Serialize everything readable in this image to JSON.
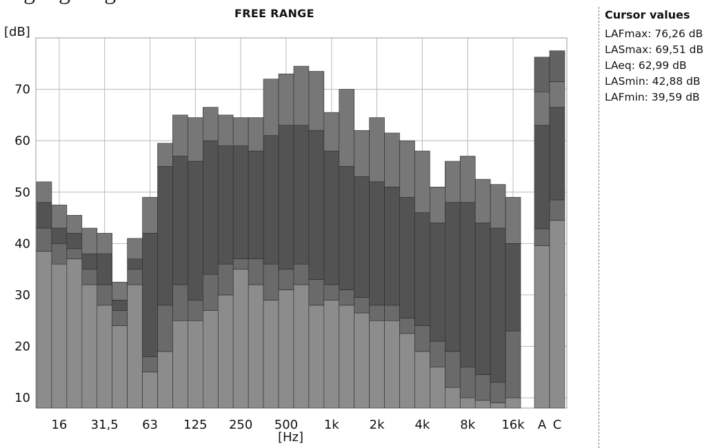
{
  "top_text": "…g…ge…g…",
  "chart_data": {
    "type": "bar",
    "title": "FREE RANGE",
    "ylabel": "[dB]",
    "xlabel": "[Hz]",
    "ylim": [
      8,
      80
    ],
    "yticks": [
      10,
      20,
      30,
      40,
      50,
      60,
      70
    ],
    "grid": true,
    "bands": [
      {
        "label": "",
        "values": [
          38.5,
          43,
          48,
          52
        ]
      },
      {
        "label": "16",
        "values": [
          36,
          40,
          43,
          47.5
        ]
      },
      {
        "label": "",
        "values": [
          37,
          39,
          42,
          45.5
        ]
      },
      {
        "label": "",
        "values": [
          32,
          35,
          38,
          43
        ]
      },
      {
        "label": "31,5",
        "values": [
          28,
          32,
          38,
          42
        ]
      },
      {
        "label": "",
        "values": [
          24,
          27,
          29,
          32.5
        ]
      },
      {
        "label": "",
        "values": [
          32,
          35,
          37,
          41
        ]
      },
      {
        "label": "63",
        "values": [
          15,
          18,
          42,
          49
        ]
      },
      {
        "label": "",
        "values": [
          19,
          28,
          55,
          59.5
        ]
      },
      {
        "label": "",
        "values": [
          25,
          32,
          57,
          65
        ]
      },
      {
        "label": "125",
        "values": [
          25,
          29,
          56,
          64.5
        ]
      },
      {
        "label": "",
        "values": [
          27,
          34,
          60,
          66.5
        ]
      },
      {
        "label": "",
        "values": [
          30,
          36,
          59,
          65
        ]
      },
      {
        "label": "250",
        "values": [
          35,
          37,
          59,
          64.5
        ]
      },
      {
        "label": "",
        "values": [
          32,
          37,
          58,
          64.5
        ]
      },
      {
        "label": "",
        "values": [
          29,
          36,
          61,
          72
        ]
      },
      {
        "label": "500",
        "values": [
          31,
          35,
          63,
          73
        ]
      },
      {
        "label": "",
        "values": [
          32,
          36,
          63,
          74.5
        ]
      },
      {
        "label": "",
        "values": [
          28,
          33,
          62,
          73.5
        ]
      },
      {
        "label": "1k",
        "values": [
          29,
          32,
          58,
          65.5
        ]
      },
      {
        "label": "",
        "values": [
          28,
          31,
          55,
          70
        ]
      },
      {
        "label": "",
        "values": [
          26.5,
          29.5,
          53,
          62
        ]
      },
      {
        "label": "2k",
        "values": [
          25,
          28,
          52,
          64.5
        ]
      },
      {
        "label": "",
        "values": [
          25,
          28,
          51,
          61.5
        ]
      },
      {
        "label": "",
        "values": [
          22.5,
          25.5,
          49,
          60
        ]
      },
      {
        "label": "4k",
        "values": [
          19,
          24,
          46,
          58
        ]
      },
      {
        "label": "",
        "values": [
          16,
          21,
          44,
          51
        ]
      },
      {
        "label": "",
        "values": [
          12,
          19,
          48,
          56
        ]
      },
      {
        "label": "8k",
        "values": [
          10,
          16,
          48,
          57
        ]
      },
      {
        "label": "",
        "values": [
          9.5,
          14.5,
          44,
          52.5
        ]
      },
      {
        "label": "",
        "values": [
          9,
          13,
          43,
          51.5
        ]
      },
      {
        "label": "16k",
        "values": [
          10,
          23,
          40,
          49
        ]
      }
    ],
    "totals": [
      {
        "label": "A",
        "values": [
          39.59,
          42.88,
          62.99,
          69.51,
          76.26
        ]
      },
      {
        "label": "C",
        "values": [
          44.5,
          48.5,
          66.5,
          71.5,
          77.5
        ]
      }
    ]
  },
  "cursor_panel": {
    "title": "Cursor values",
    "rows": [
      {
        "label": "LAFmax",
        "value": "76,26 dB",
        "text": "LAFmax: 76,26 dB"
      },
      {
        "label": "LASmax",
        "value": "69,51 dB",
        "text": "LASmax: 69,51 dB"
      },
      {
        "label": "LAeq",
        "value": "62,99 dB",
        "text": "LAeq: 62,99 dB"
      },
      {
        "label": "LASmin",
        "value": "42,88 dB",
        "text": "LASmin: 42,88 dB"
      },
      {
        "label": "LAFmin",
        "value": "39,59 dB",
        "text": "LAFmin: 39,59 dB"
      }
    ]
  },
  "colors": {
    "bar_lowest": "#8c8c8c",
    "bar_low": "#6a6a6a",
    "bar_mid": "#535353",
    "bar_top": "#777777",
    "bar_extra": "#626262",
    "bar_edge": "#2a2a2a",
    "grid": "#b8b8b8"
  }
}
